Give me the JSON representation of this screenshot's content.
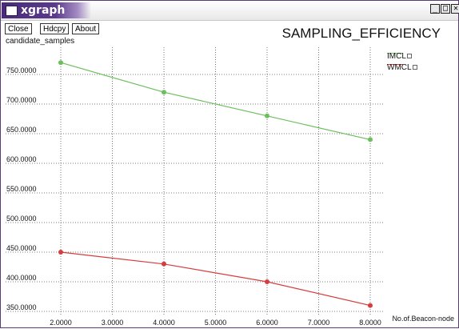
{
  "window": {
    "title": "xgraph"
  },
  "window_controls": {
    "minimize": "_",
    "maximize": "□",
    "close": "✕"
  },
  "toolbar": {
    "close_label": "Close",
    "hdcpy_label": "Hdcpy",
    "about_label": "About"
  },
  "colors": {
    "green_series": "#6cbf5c",
    "red_series": "#d63d3d",
    "grid": "#555555"
  },
  "chart_data": {
    "type": "line",
    "title": "SAMPLING_EFFICIENCY",
    "ylabel": "candidate_samples",
    "xlabel": "No.of.Beacon-node",
    "xlim": [
      2.0,
      8.0
    ],
    "ylim": [
      350.0,
      775.0
    ],
    "x_ticks": [
      "2.0000",
      "3.0000",
      "4.0000",
      "5.0000",
      "6.0000",
      "7.0000",
      "8.0000"
    ],
    "y_ticks": [
      "350.0000",
      "400.0000",
      "450.0000",
      "500.0000",
      "550.0000",
      "600.0000",
      "650.0000",
      "700.0000",
      "750.0000"
    ],
    "grid": true,
    "legend_placement": "top-right",
    "series": [
      {
        "name": "IMCL",
        "color": "#6cbf5c",
        "x": [
          2,
          4,
          6,
          8
        ],
        "y": [
          770,
          720,
          680,
          640
        ]
      },
      {
        "name": "WMCL",
        "color": "#d63d3d",
        "x": [
          2,
          4,
          6,
          8
        ],
        "y": [
          450,
          430,
          400,
          360
        ]
      }
    ]
  }
}
